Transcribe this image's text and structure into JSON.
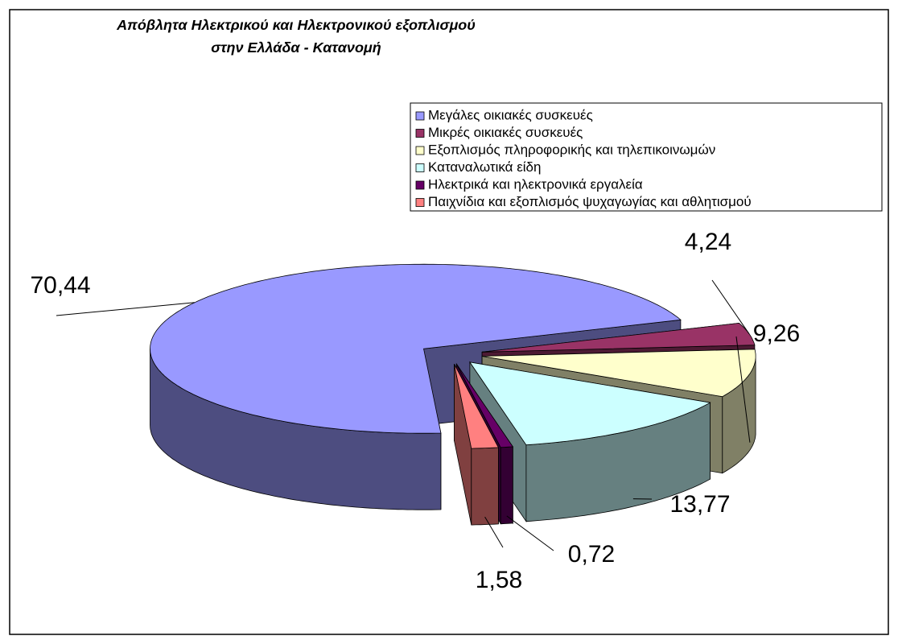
{
  "chart_data": {
    "type": "pie",
    "title": [
      "Απόβλητα Ηλεκτρικού και Ηλεκτρονικού εξοπλισμού",
      "στην Ελλάδα - Κατανομή"
    ],
    "categories": [
      "Μεγάλες οικιακές συσκευές",
      "Μικρές οικιακές συσκευές",
      "Εξοπλισμός πληροφορικής και τηλεπικοινωμών",
      "Καταναλωτικά είδη",
      "Ηλεκτρικά και ηλεκτρονικά εργαλεία",
      "Παιχνίδια και εξοπλισμός ψυχαγωγίας και αθλητισμού"
    ],
    "values": [
      70.44,
      4.24,
      9.26,
      13.77,
      0.72,
      1.58
    ],
    "value_labels": [
      "70,44",
      "4,24",
      "9,26",
      "13,77",
      "0,72",
      "1,58"
    ],
    "colors": [
      "#9999ff",
      "#993366",
      "#ffffcc",
      "#ccffff",
      "#660066",
      "#ff8080"
    ],
    "legend": "top-right"
  }
}
